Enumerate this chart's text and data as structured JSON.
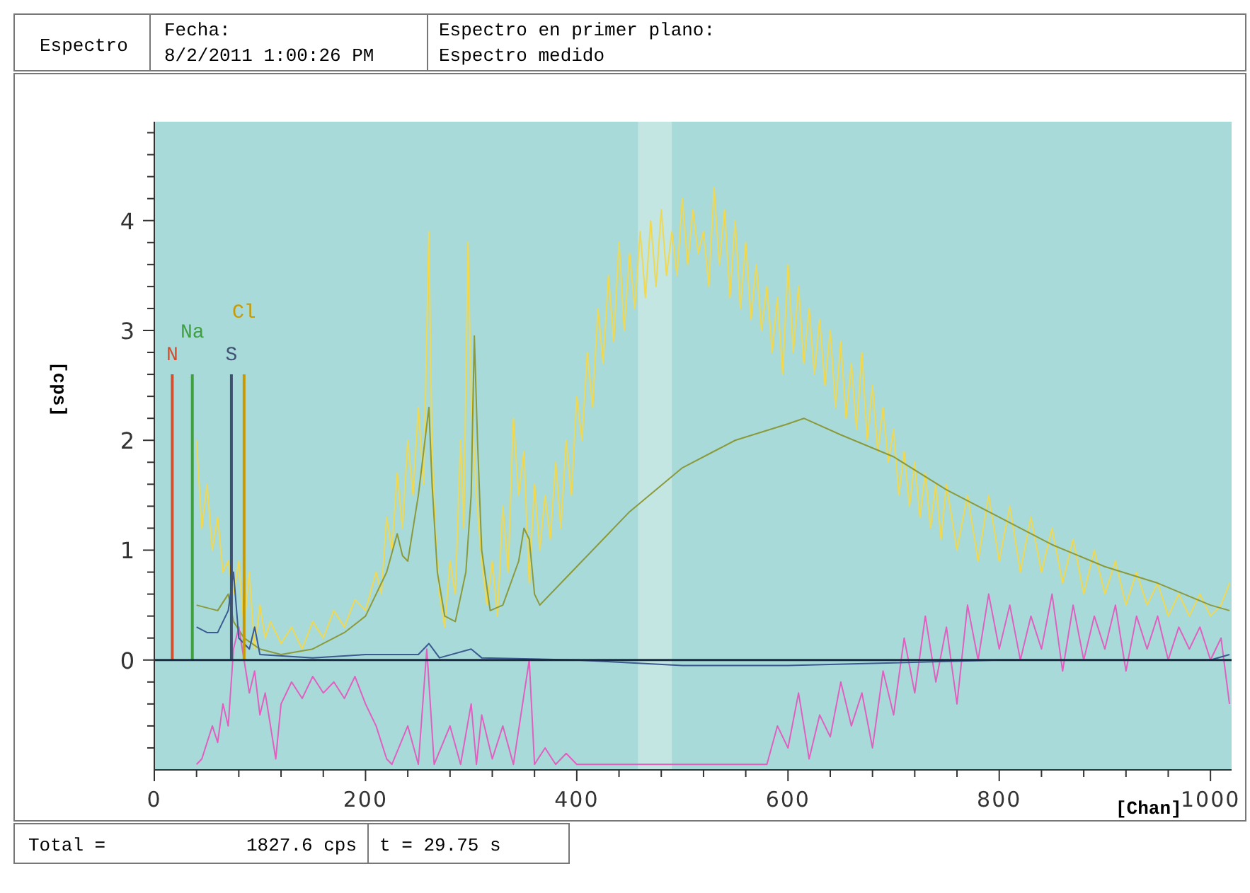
{
  "chart_data": {
    "type": "line",
    "xlabel": "[Chan]",
    "ylabel": "[cps]",
    "xlim": [
      0,
      1020
    ],
    "ylim": [
      -1,
      4.9
    ],
    "xticks": [
      0,
      {
        "value": 40,
        "label": null
      },
      {
        "value": 80,
        "label": null
      },
      {
        "value": 120,
        "label": null
      },
      {
        "value": 160,
        "label": null
      },
      200,
      {
        "value": 240,
        "label": null
      },
      {
        "value": 280,
        "label": null
      },
      {
        "value": 320,
        "label": null
      },
      {
        "value": 360,
        "label": null
      },
      400,
      {
        "value": 440,
        "label": null
      },
      {
        "value": 480,
        "label": null
      },
      {
        "value": 520,
        "label": null
      },
      {
        "value": 560,
        "label": null
      },
      600,
      {
        "value": 640,
        "label": null
      },
      {
        "value": 680,
        "label": null
      },
      {
        "value": 720,
        "label": null
      },
      {
        "value": 760,
        "label": null
      },
      800,
      {
        "value": 840,
        "label": null
      },
      {
        "value": 880,
        "label": null
      },
      {
        "value": 920,
        "label": null
      },
      {
        "value": 960,
        "label": null
      },
      1000
    ],
    "yticks": [
      {
        "value": -0.8,
        "label": null
      },
      {
        "value": -0.6,
        "label": null
      },
      {
        "value": -0.4,
        "label": null
      },
      {
        "value": -0.2,
        "label": null
      },
      0,
      {
        "value": 0.2,
        "label": null
      },
      {
        "value": 0.4,
        "label": null
      },
      {
        "value": 0.6,
        "label": null
      },
      {
        "value": 0.8,
        "label": null
      },
      1,
      {
        "value": 1.2,
        "label": null
      },
      {
        "value": 1.4,
        "label": null
      },
      {
        "value": 1.6,
        "label": null
      },
      {
        "value": 1.8,
        "label": null
      },
      2,
      {
        "value": 2.2,
        "label": null
      },
      {
        "value": 2.4,
        "label": null
      },
      {
        "value": 2.6,
        "label": null
      },
      {
        "value": 2.8,
        "label": null
      },
      3,
      {
        "value": 3.2,
        "label": null
      },
      {
        "value": 3.4,
        "label": null
      },
      {
        "value": 3.6,
        "label": null
      },
      {
        "value": 3.8,
        "label": null
      },
      4,
      {
        "value": 4.2,
        "label": null
      },
      {
        "value": 4.4,
        "label": null
      },
      {
        "value": 4.6,
        "label": null
      },
      {
        "value": 4.8,
        "label": null
      }
    ],
    "grid": false,
    "marker": "none",
    "line_style": "solid",
    "ref_lines": [
      {
        "axis": "y",
        "value": 0,
        "color": "#1a2a40"
      }
    ],
    "bands": [
      {
        "axis": "x",
        "from": 458,
        "to": 490,
        "color": "#c4e6e2"
      }
    ],
    "series": [
      {
        "color": "#f0d850",
        "x": [
          40,
          45,
          50,
          55,
          60,
          65,
          70,
          75,
          80,
          85,
          90,
          95,
          100,
          105,
          110,
          120,
          130,
          140,
          150,
          160,
          170,
          180,
          190,
          200,
          210,
          215,
          220,
          225,
          230,
          235,
          240,
          245,
          250,
          255,
          260,
          263,
          267,
          270,
          275,
          280,
          285,
          290,
          293,
          297,
          300,
          305,
          310,
          315,
          320,
          325,
          330,
          335,
          340,
          345,
          350,
          355,
          360,
          365,
          370,
          375,
          380,
          385,
          390,
          395,
          400,
          405,
          410,
          415,
          420,
          425,
          430,
          435,
          440,
          445,
          450,
          455,
          460,
          465,
          470,
          475,
          480,
          485,
          490,
          495,
          500,
          505,
          510,
          515,
          520,
          525,
          530,
          535,
          540,
          545,
          550,
          555,
          560,
          565,
          570,
          575,
          580,
          585,
          590,
          595,
          600,
          605,
          610,
          615,
          620,
          625,
          630,
          635,
          640,
          645,
          650,
          655,
          660,
          665,
          670,
          675,
          680,
          685,
          690,
          695,
          700,
          705,
          710,
          715,
          720,
          725,
          730,
          735,
          740,
          745,
          750,
          760,
          770,
          780,
          790,
          800,
          810,
          820,
          830,
          840,
          850,
          860,
          870,
          880,
          890,
          900,
          910,
          920,
          930,
          940,
          950,
          960,
          970,
          980,
          990,
          1000,
          1010,
          1018
        ],
        "values": [
          2.0,
          1.2,
          1.6,
          1.0,
          1.3,
          0.8,
          0.9,
          0.6,
          0.9,
          0.3,
          0.8,
          0.1,
          0.5,
          0.2,
          0.35,
          0.15,
          0.3,
          0.1,
          0.35,
          0.2,
          0.45,
          0.3,
          0.55,
          0.45,
          0.8,
          0.6,
          1.3,
          1.0,
          1.7,
          1.2,
          2.0,
          1.5,
          2.3,
          1.6,
          3.9,
          1.9,
          1.0,
          0.6,
          0.3,
          0.9,
          0.6,
          2.0,
          1.2,
          3.8,
          2.4,
          1.5,
          0.9,
          0.5,
          0.9,
          0.4,
          1.4,
          0.8,
          2.2,
          1.5,
          1.9,
          0.7,
          1.6,
          1.0,
          1.5,
          1.1,
          1.8,
          1.2,
          2.0,
          1.5,
          2.4,
          2.0,
          2.8,
          2.3,
          3.2,
          2.7,
          3.5,
          2.9,
          3.8,
          3.0,
          3.7,
          3.2,
          3.9,
          3.3,
          4.0,
          3.4,
          4.1,
          3.5,
          3.9,
          3.5,
          4.2,
          3.6,
          4.1,
          3.7,
          3.9,
          3.4,
          4.3,
          3.6,
          4.1,
          3.3,
          4.0,
          3.2,
          3.8,
          3.1,
          3.6,
          3.0,
          3.4,
          2.8,
          3.3,
          2.6,
          3.6,
          2.8,
          3.4,
          2.7,
          3.2,
          2.6,
          3.1,
          2.5,
          3.0,
          2.3,
          2.9,
          2.2,
          2.7,
          2.1,
          2.8,
          2.0,
          2.5,
          1.9,
          2.3,
          1.8,
          2.1,
          1.5,
          1.9,
          1.4,
          1.8,
          1.3,
          1.7,
          1.2,
          1.6,
          1.1,
          1.6,
          1.0,
          1.5,
          0.9,
          1.5,
          0.9,
          1.4,
          0.8,
          1.3,
          0.8,
          1.2,
          0.7,
          1.1,
          0.6,
          1.0,
          0.6,
          0.9,
          0.5,
          0.8,
          0.5,
          0.7,
          0.4,
          0.6,
          0.4,
          0.6,
          0.4,
          0.5,
          0.7
        ]
      },
      {
        "color": "#8a9a3a",
        "x": [
          40,
          60,
          70,
          75,
          85,
          100,
          120,
          150,
          180,
          200,
          220,
          230,
          235,
          240,
          250,
          255,
          260,
          263,
          268,
          275,
          285,
          295,
          300,
          303,
          306,
          310,
          318,
          330,
          345,
          350,
          355,
          360,
          365,
          400,
          450,
          500,
          550,
          600,
          615,
          650,
          700,
          750,
          800,
          850,
          900,
          950,
          1000,
          1018
        ],
        "values": [
          0.5,
          0.45,
          0.6,
          0.35,
          0.2,
          0.1,
          0.05,
          0.1,
          0.25,
          0.4,
          0.8,
          1.15,
          0.95,
          0.9,
          1.5,
          1.9,
          2.3,
          1.6,
          0.8,
          0.4,
          0.35,
          0.8,
          1.5,
          2.95,
          2.0,
          1.0,
          0.45,
          0.5,
          0.9,
          1.2,
          1.1,
          0.6,
          0.5,
          0.85,
          1.35,
          1.75,
          2.0,
          2.15,
          2.2,
          2.05,
          1.85,
          1.55,
          1.3,
          1.05,
          0.85,
          0.7,
          0.5,
          0.45
        ]
      },
      {
        "color": "#e060c0",
        "x": [
          40,
          45,
          55,
          60,
          65,
          70,
          75,
          80,
          85,
          90,
          95,
          100,
          105,
          110,
          115,
          120,
          130,
          140,
          150,
          160,
          170,
          180,
          190,
          200,
          210,
          220,
          225,
          240,
          250,
          258,
          262,
          265,
          280,
          290,
          300,
          305,
          310,
          320,
          330,
          340,
          355,
          360,
          370,
          380,
          390,
          400,
          580,
          590,
          600,
          610,
          620,
          630,
          640,
          650,
          660,
          670,
          680,
          690,
          700,
          710,
          720,
          730,
          740,
          750,
          760,
          770,
          780,
          790,
          800,
          810,
          820,
          830,
          840,
          850,
          860,
          870,
          880,
          890,
          900,
          910,
          920,
          930,
          940,
          950,
          960,
          970,
          980,
          990,
          1000,
          1010,
          1018
        ],
        "values": [
          -0.95,
          -0.9,
          -0.6,
          -0.75,
          -0.4,
          -0.6,
          0.1,
          0.3,
          0.0,
          -0.3,
          -0.1,
          -0.5,
          -0.3,
          -0.6,
          -0.9,
          -0.4,
          -0.2,
          -0.35,
          -0.15,
          -0.3,
          -0.2,
          -0.35,
          -0.15,
          -0.4,
          -0.6,
          -0.9,
          -0.95,
          -0.6,
          -0.95,
          0.1,
          -0.5,
          -0.95,
          -0.6,
          -0.95,
          -0.4,
          -0.95,
          -0.5,
          -0.9,
          -0.6,
          -0.95,
          0.0,
          -0.95,
          -0.8,
          -0.95,
          -0.85,
          -0.95,
          -0.95,
          -0.6,
          -0.8,
          -0.3,
          -0.9,
          -0.5,
          -0.7,
          -0.2,
          -0.6,
          -0.3,
          -0.8,
          -0.1,
          -0.5,
          0.2,
          -0.3,
          0.4,
          -0.2,
          0.3,
          -0.4,
          0.5,
          0.0,
          0.6,
          0.1,
          0.5,
          0.0,
          0.4,
          0.1,
          0.6,
          -0.1,
          0.5,
          0.0,
          0.4,
          0.1,
          0.5,
          -0.1,
          0.4,
          0.1,
          0.4,
          0.0,
          0.3,
          0.1,
          0.3,
          0.0,
          0.2,
          -0.4
        ]
      },
      {
        "color": "#3a5a90",
        "x": [
          40,
          50,
          60,
          70,
          75,
          80,
          90,
          95,
          100,
          150,
          200,
          250,
          260,
          270,
          300,
          310,
          400,
          500,
          600,
          800,
          1000,
          1018
        ],
        "values": [
          0.3,
          0.25,
          0.25,
          0.45,
          0.8,
          0.2,
          0.1,
          0.3,
          0.05,
          0.02,
          0.05,
          0.05,
          0.15,
          0.02,
          0.1,
          0.02,
          0.0,
          -0.05,
          -0.05,
          0.0,
          0.0,
          0.05
        ]
      },
      {
        "name": "N",
        "color": "#d05030",
        "x": [
          17,
          17
        ],
        "values": [
          0,
          2.6
        ]
      },
      {
        "name": "Na",
        "color": "#40a040",
        "x": [
          36,
          36
        ],
        "values": [
          0,
          2.6
        ]
      },
      {
        "name": "S",
        "color": "#405070",
        "x": [
          73,
          73
        ],
        "values": [
          0,
          2.6
        ]
      },
      {
        "name": "Cl",
        "color": "#c89a00",
        "x": [
          85,
          85
        ],
        "values": [
          0,
          2.6
        ]
      }
    ],
    "annotations": [
      "Espectro",
      "Fecha:",
      "8/2/2011 1:00:26 PM",
      "Espectro en primer plano:",
      "Espectro medido",
      "Total =",
      "1827.6 cps",
      "t = 29.75 s"
    ]
  }
}
